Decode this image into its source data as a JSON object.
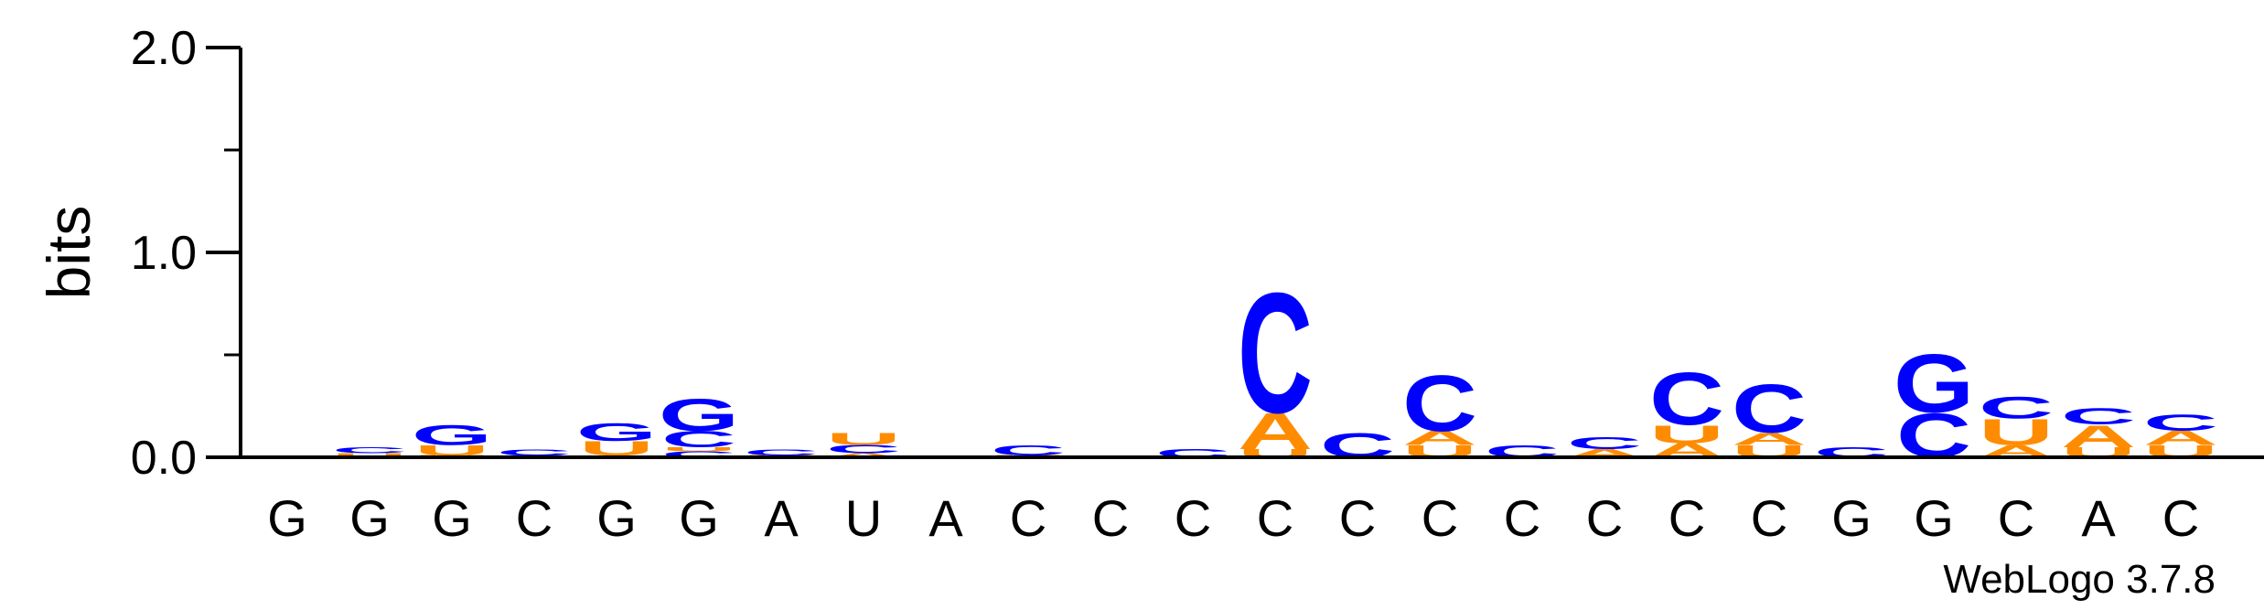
{
  "chart_data": {
    "type": "sequence-logo",
    "ylabel": "bits",
    "ylim": [
      0,
      2
    ],
    "yticks": [
      "0.0",
      "1.0",
      "2.0"
    ],
    "xlabels": [
      "G",
      "G",
      "G",
      "C",
      "G",
      "G",
      "A",
      "U",
      "A",
      "C",
      "C",
      "C",
      "C",
      "C",
      "C",
      "C",
      "C",
      "C",
      "C",
      "G",
      "G",
      "C",
      "A",
      "C"
    ],
    "colors": {
      "A": "#ff8c00",
      "U": "#ff8c00",
      "C": "#0000ff",
      "G": "#0000ff"
    },
    "stacks": [
      [],
      [
        [
          "U",
          0.02
        ],
        [
          "C",
          0.03
        ]
      ],
      [
        [
          "U",
          0.01
        ],
        [
          "U",
          0.05
        ],
        [
          "G",
          0.1
        ]
      ],
      [
        [
          "G",
          0.01
        ],
        [
          "C",
          0.03
        ]
      ],
      [
        [
          "A",
          0.01
        ],
        [
          "U",
          0.07
        ],
        [
          "G",
          0.09
        ]
      ],
      [
        [
          "C",
          0.03
        ],
        [
          "U",
          0.02
        ],
        [
          "C",
          0.08
        ],
        [
          "G",
          0.16
        ]
      ],
      [
        [
          "U",
          0.01
        ],
        [
          "C",
          0.03
        ]
      ],
      [
        [
          "A",
          0.02
        ],
        [
          "C",
          0.04
        ],
        [
          "U",
          0.06
        ]
      ],
      [],
      [
        [
          "U",
          0.01
        ],
        [
          "C",
          0.05
        ]
      ],
      [],
      [
        [
          "C",
          0.04
        ]
      ],
      [
        [
          "U",
          0.04
        ],
        [
          "A",
          0.18
        ],
        [
          "C",
          0.6
        ]
      ],
      [
        [
          "C",
          0.12
        ]
      ],
      [
        [
          "U",
          0.06
        ],
        [
          "A",
          0.07
        ],
        [
          "C",
          0.28
        ]
      ],
      [
        [
          "C",
          0.06
        ]
      ],
      [
        [
          "A",
          0.04
        ],
        [
          "C",
          0.06
        ]
      ],
      [
        [
          "A",
          0.07
        ],
        [
          "U",
          0.09
        ],
        [
          "C",
          0.26
        ]
      ],
      [
        [
          "U",
          0.06
        ],
        [
          "A",
          0.06
        ],
        [
          "C",
          0.24
        ]
      ],
      [
        [
          "C",
          0.05
        ]
      ],
      [
        [
          "C",
          0.22
        ],
        [
          "G",
          0.29
        ]
      ],
      [
        [
          "A",
          0.06
        ],
        [
          "U",
          0.13
        ],
        [
          "C",
          0.11
        ]
      ],
      [
        [
          "U",
          0.05
        ],
        [
          "A",
          0.11
        ],
        [
          "C",
          0.08
        ]
      ],
      [
        [
          "U",
          0.06
        ],
        [
          "A",
          0.07
        ],
        [
          "C",
          0.08
        ]
      ]
    ]
  },
  "credit": "WebLogo 3.7.8"
}
